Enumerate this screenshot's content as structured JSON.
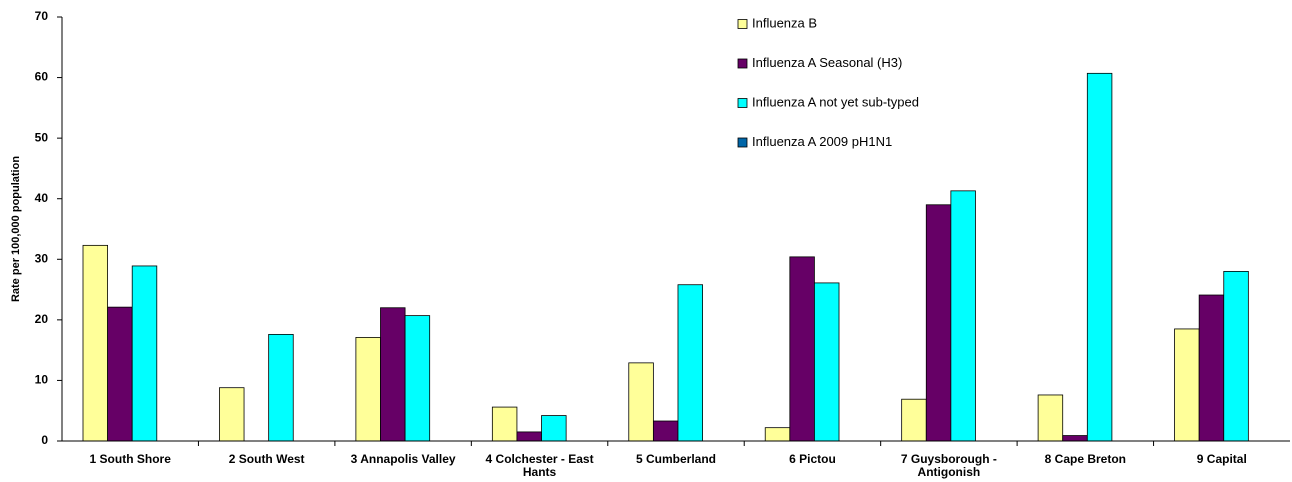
{
  "chart_data": {
    "type": "bar",
    "y_label": "Rate per 100,000 population",
    "categories": [
      "1 South Shore",
      "2 South West",
      "3 Annapolis Valley",
      "4 Colchester - East Hants",
      "5 Cumberland",
      "6 Pictou",
      "7 Guysborough - Antigonish",
      "8 Cape Breton",
      "9 Capital"
    ],
    "series": [
      {
        "name": "Influenza B",
        "color": "#ffff99",
        "values": [
          32.3,
          8.8,
          17.1,
          5.6,
          12.9,
          2.2,
          6.9,
          7.6,
          18.5
        ]
      },
      {
        "name": "Influenza A Seasonal (H3)",
        "color": "#660066",
        "values": [
          22.1,
          0,
          22,
          1.5,
          3.3,
          30.4,
          39,
          0.9,
          24.1
        ]
      },
      {
        "name": "Influenza A not yet sub-typed",
        "color": "#00ffff",
        "values": [
          28.9,
          17.6,
          20.7,
          4.2,
          25.8,
          26.1,
          41.3,
          60.7,
          28
        ]
      },
      {
        "name": "Influenza A 2009 pH1N1",
        "color": "#0066a8",
        "values": [
          0,
          0,
          0,
          0,
          0,
          0,
          0,
          0,
          0
        ]
      }
    ],
    "ylim": [
      0,
      70
    ],
    "yticks": [
      0,
      10,
      20,
      30,
      40,
      50,
      60,
      70
    ],
    "grid": false,
    "legend": "top-right"
  }
}
